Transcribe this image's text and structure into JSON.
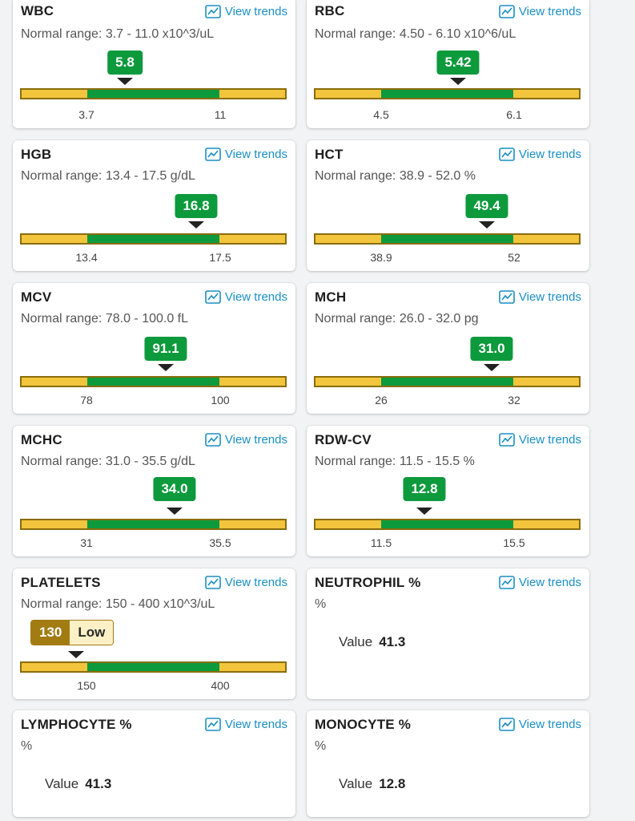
{
  "view_trends_label": "View trends",
  "range_prefix": "Normal range: ",
  "low_label": "Low",
  "value_label": "Value",
  "colors": {
    "normal": "#0d9a3c",
    "out_of_range": "#f2c53d",
    "low_badge": "#a27c12",
    "link": "#1a8fc4"
  },
  "cards": [
    {
      "name": "WBC",
      "range_text": "3.7 - 11.0 x10^3/uL",
      "value": "5.8",
      "low": "3.7",
      "high": "11",
      "value_position": 0.4
    },
    {
      "name": "RBC",
      "range_text": "4.50 - 6.10 x10^6/uL",
      "value": "5.42",
      "low": "4.5",
      "high": "6.1",
      "value_position": 0.54
    },
    {
      "name": "HGB",
      "range_text": "13.4 - 17.5 g/dL",
      "value": "16.8",
      "low": "13.4",
      "high": "17.5",
      "value_position": 0.66
    },
    {
      "name": "HCT",
      "range_text": "38.9 - 52.0 %",
      "value": "49.4",
      "low": "38.9",
      "high": "52",
      "value_position": 0.65
    },
    {
      "name": "MCV",
      "range_text": "78.0 - 100.0 fL",
      "value": "91.1",
      "low": "78",
      "high": "100",
      "value_position": 0.55
    },
    {
      "name": "MCH",
      "range_text": "26.0 - 32.0 pg",
      "value": "31.0",
      "low": "26",
      "high": "32",
      "value_position": 0.67
    },
    {
      "name": "MCHC",
      "range_text": "31.0 - 35.5 g/dL",
      "value": "34.0",
      "low": "31",
      "high": "35.5",
      "value_position": 0.58
    },
    {
      "name": "RDW-CV",
      "range_text": "11.5 - 15.5 %",
      "value": "12.8",
      "low": "11.5",
      "high": "15.5",
      "value_position": 0.41
    },
    {
      "name": "PLATELETS",
      "range_text": "150 - 400 x10^3/uL",
      "value": "130",
      "low": "150",
      "high": "400",
      "value_position": 0.21,
      "flag": "Low"
    },
    {
      "name": "NEUTROPHIL %",
      "unit": "%",
      "value": "41.3"
    },
    {
      "name": "LYMPHOCYTE %",
      "unit": "%",
      "value": "41.3"
    },
    {
      "name": "MONOCYTE %",
      "unit": "%",
      "value": "12.8"
    }
  ]
}
